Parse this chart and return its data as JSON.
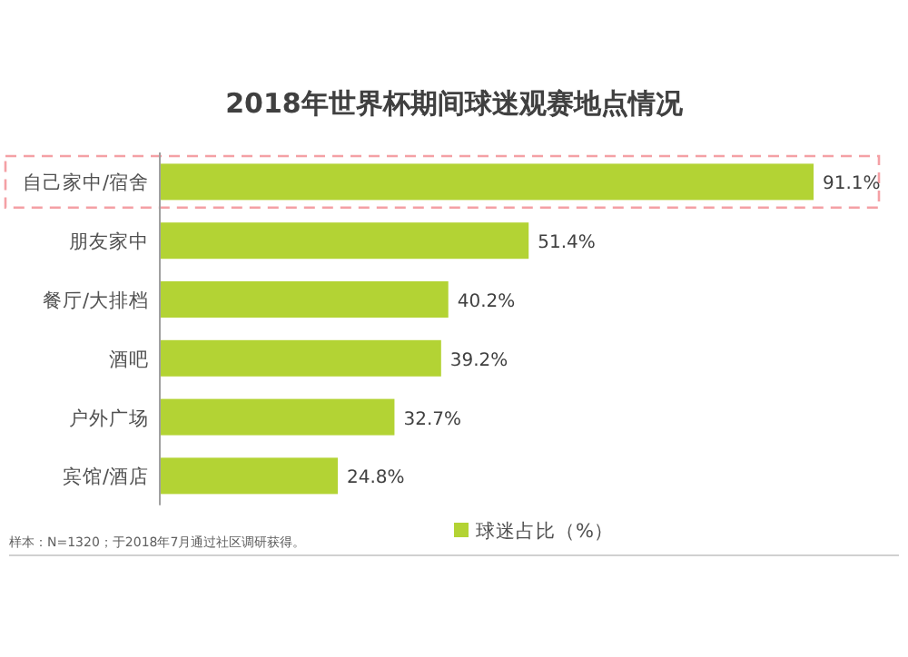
{
  "chart_data": {
    "type": "bar",
    "orientation": "horizontal",
    "title": "2018年世界杯期间球迷观赛地点情况",
    "categories": [
      "自己家中/宿舍",
      "朋友家中",
      "餐厅/大排档",
      "酒吧",
      "户外广场",
      "宾馆/酒店"
    ],
    "series": [
      {
        "name": "球迷占比（%）",
        "color": "#b3d334",
        "values": [
          91.1,
          51.4,
          40.2,
          39.2,
          32.7,
          24.8
        ],
        "value_labels": [
          "91.1%",
          "51.4%",
          "40.2%",
          "39.2%",
          "32.7%",
          "24.8%"
        ]
      }
    ],
    "legend": "bottom",
    "annotations": [
      "样本：N=1320；于2018年7月通过社区调研获得。"
    ]
  }
}
